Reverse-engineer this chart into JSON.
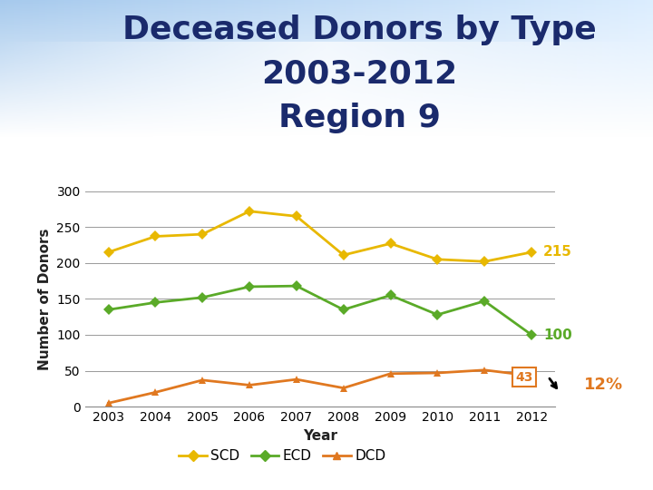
{
  "title_line1": "Deceased Donors by Type",
  "title_line2": "2003-2012",
  "title_line3": "Region 9",
  "xlabel": "Year",
  "ylabel": "Number of Donors",
  "years": [
    2003,
    2004,
    2005,
    2006,
    2007,
    2008,
    2009,
    2010,
    2011,
    2012
  ],
  "SCD": [
    215,
    237,
    240,
    272,
    265,
    211,
    227,
    205,
    202,
    215
  ],
  "ECD": [
    135,
    145,
    152,
    167,
    168,
    135,
    155,
    128,
    147,
    100
  ],
  "DCD": [
    5,
    20,
    37,
    30,
    38,
    26,
    46,
    47,
    51,
    43
  ],
  "SCD_color": "#e8b800",
  "ECD_color": "#5aaa28",
  "DCD_color": "#e07820",
  "SCD_label_val": "215",
  "ECD_label_val": "100",
  "DCD_label_val": "43",
  "annotation_text": "12%",
  "ylim": [
    0,
    300
  ],
  "yticks": [
    0,
    50,
    100,
    150,
    200,
    250,
    300
  ],
  "title_color": "#1a2a6c",
  "background_color": "#ffffff",
  "title_fontsize": 26,
  "axis_label_fontsize": 11,
  "tick_fontsize": 10,
  "legend_fontsize": 11
}
